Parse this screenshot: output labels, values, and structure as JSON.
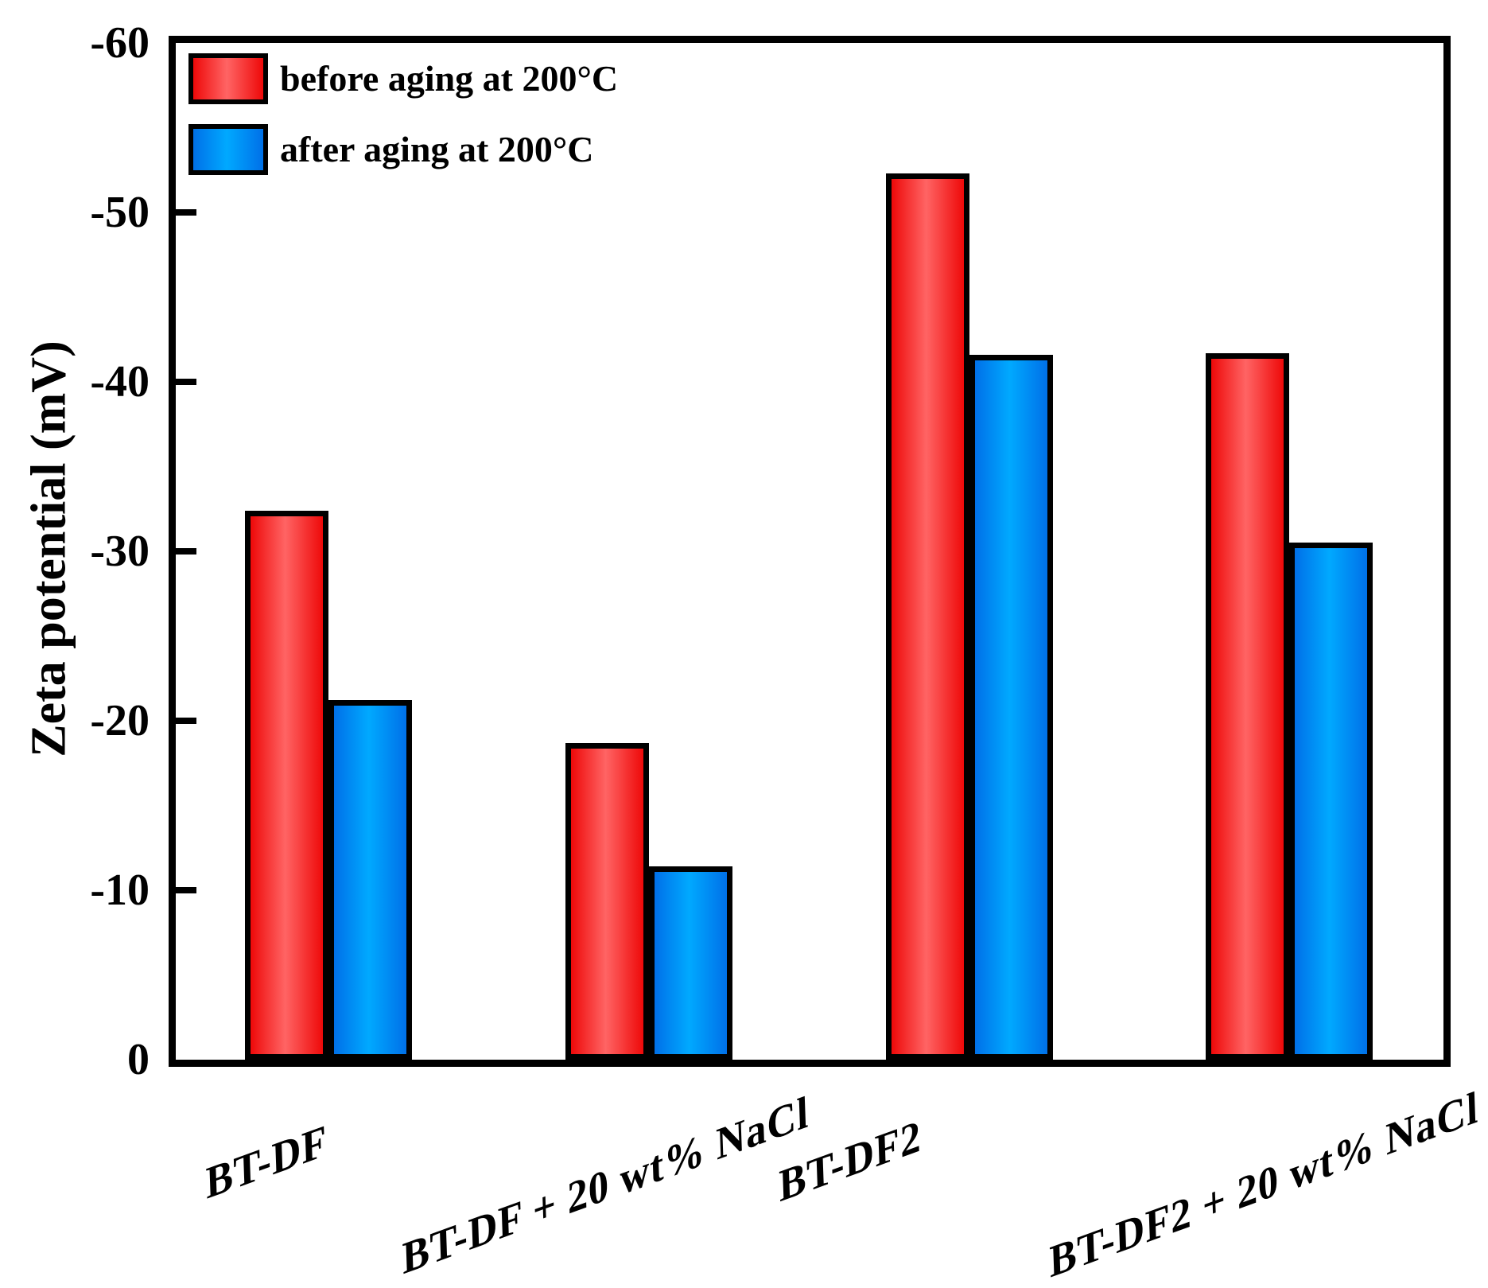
{
  "chart_data": {
    "type": "bar",
    "title": "",
    "ylabel": "Zeta potential (mV)",
    "xlabel": "",
    "categories": [
      "BT-DF",
      "BT-DF + 20 wt% NaCl",
      "BT-DF2",
      "BT-DF2 + 20 wt% NaCl"
    ],
    "series": [
      {
        "name": "before aging at 200°C",
        "values": [
          -32.4,
          -18.7,
          -52.3,
          -41.7
        ],
        "color_edge": "#ee0909",
        "color_mid": "#ff6464"
      },
      {
        "name": "after aging at 200°C",
        "values": [
          -21.2,
          -11.4,
          -41.6,
          -30.5
        ],
        "color_edge": "#0070e8",
        "color_mid": "#00a9ff"
      }
    ],
    "ylim": [
      0,
      -60
    ],
    "yticks": [
      "-60",
      "-50",
      "-40",
      "-30",
      "-20",
      "-10",
      "0"
    ],
    "axis_inverted": true,
    "grid": false,
    "legend_position": "top-left",
    "frame_color": "#000000",
    "background_color": "#ffffff"
  }
}
